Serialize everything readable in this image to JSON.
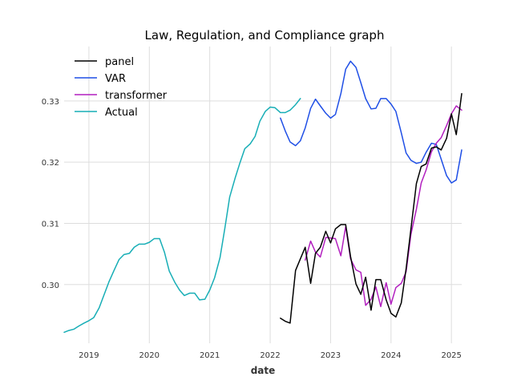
{
  "chart_data": {
    "type": "line",
    "title": "Law, Regulation, and Compliance graph",
    "xlabel": "date",
    "ylabel": "",
    "xlim": [
      2018.59,
      2025.17
    ],
    "ylim": [
      0.2904,
      0.3389
    ],
    "x_ticks": [
      2019,
      2020,
      2021,
      2022,
      2023,
      2024,
      2025
    ],
    "x_tick_labels": [
      "2019",
      "2020",
      "2021",
      "2022",
      "2023",
      "2024",
      "2025"
    ],
    "y_ticks": [
      0.3,
      0.31,
      0.32,
      0.33
    ],
    "y_tick_labels": [
      "0.30",
      "0.31",
      "0.32",
      "0.33"
    ],
    "grid": true,
    "legend_position": "top-left",
    "series": [
      {
        "name": "panel",
        "color": "#000000",
        "x": [
          2022.17,
          2022.25,
          2022.33,
          2022.42,
          2022.5,
          2022.58,
          2022.67,
          2022.75,
          2022.83,
          2022.92,
          2023.0,
          2023.08,
          2023.17,
          2023.25,
          2023.33,
          2023.42,
          2023.5,
          2023.58,
          2023.67,
          2023.75,
          2023.83,
          2023.92,
          2024.0,
          2024.08,
          2024.17,
          2024.25,
          2024.33,
          2024.42,
          2024.5,
          2024.58,
          2024.67,
          2024.75,
          2024.83,
          2024.92,
          2025.0,
          2025.08,
          2025.17
        ],
        "y": [
          0.2945,
          0.294,
          0.2937,
          0.3023,
          0.3042,
          0.3061,
          0.3002,
          0.3051,
          0.3061,
          0.3087,
          0.3068,
          0.3091,
          0.3098,
          0.3098,
          0.3046,
          0.3001,
          0.2984,
          0.3012,
          0.2958,
          0.3008,
          0.3008,
          0.2975,
          0.2953,
          0.2947,
          0.297,
          0.3026,
          0.3091,
          0.3165,
          0.3193,
          0.3197,
          0.3223,
          0.3225,
          0.322,
          0.3239,
          0.3279,
          0.3245,
          0.3312
        ]
      },
      {
        "name": "VAR",
        "color": "#1f4fe6",
        "x": [
          2022.17,
          2022.25,
          2022.33,
          2022.42,
          2022.5,
          2022.58,
          2022.67,
          2022.75,
          2022.83,
          2022.92,
          2023.0,
          2023.08,
          2023.17,
          2023.25,
          2023.33,
          2023.42,
          2023.5,
          2023.58,
          2023.67,
          2023.75,
          2023.83,
          2023.92,
          2024.0,
          2024.08,
          2024.17,
          2024.25,
          2024.33,
          2024.42,
          2024.5,
          2024.58,
          2024.67,
          2024.75,
          2024.83,
          2024.92,
          2025.0,
          2025.08,
          2025.17
        ],
        "y": [
          0.3272,
          0.3251,
          0.3233,
          0.3227,
          0.3235,
          0.3256,
          0.3288,
          0.3303,
          0.3292,
          0.328,
          0.3272,
          0.3278,
          0.3312,
          0.3352,
          0.3365,
          0.3355,
          0.333,
          0.3304,
          0.3287,
          0.3288,
          0.3304,
          0.3304,
          0.3295,
          0.3283,
          0.3248,
          0.3215,
          0.3203,
          0.3198,
          0.32,
          0.3216,
          0.3231,
          0.3229,
          0.3205,
          0.3178,
          0.3166,
          0.3171,
          0.322
        ]
      },
      {
        "name": "transformer",
        "color": "#b21fbf",
        "x": [
          2022.58,
          2022.67,
          2022.75,
          2022.83,
          2022.92,
          2023.0,
          2023.08,
          2023.17,
          2023.25,
          2023.33,
          2023.42,
          2023.5,
          2023.58,
          2023.67,
          2023.75,
          2023.83,
          2023.92,
          2024.0,
          2024.08,
          2024.17,
          2024.25,
          2024.33,
          2024.42,
          2024.5,
          2024.58,
          2024.67,
          2024.75,
          2024.83,
          2024.92,
          2025.0,
          2025.08,
          2025.17
        ],
        "y": [
          0.304,
          0.3071,
          0.3053,
          0.3045,
          0.3077,
          0.3076,
          0.3075,
          0.3047,
          0.3095,
          0.3042,
          0.3024,
          0.302,
          0.2966,
          0.2976,
          0.2996,
          0.2964,
          0.3003,
          0.2968,
          0.2995,
          0.3002,
          0.3021,
          0.3082,
          0.3123,
          0.3166,
          0.3187,
          0.3217,
          0.3231,
          0.324,
          0.326,
          0.3279,
          0.3292,
          0.3285
        ]
      },
      {
        "name": "Actual",
        "color": "#17aeb6",
        "x": [
          2018.59,
          2018.67,
          2018.75,
          2018.83,
          2018.92,
          2019.0,
          2019.08,
          2019.17,
          2019.25,
          2019.33,
          2019.42,
          2019.5,
          2019.58,
          2019.67,
          2019.75,
          2019.83,
          2019.92,
          2020.0,
          2020.08,
          2020.17,
          2020.25,
          2020.33,
          2020.42,
          2020.5,
          2020.58,
          2020.67,
          2020.75,
          2020.83,
          2020.92,
          2021.0,
          2021.08,
          2021.17,
          2021.25,
          2021.33,
          2021.42,
          2021.5,
          2021.58,
          2021.67,
          2021.75,
          2021.83,
          2021.92,
          2022.0,
          2022.08,
          2022.17,
          2022.25,
          2022.33,
          2022.42,
          2022.5
        ],
        "y": [
          0.2922,
          0.2925,
          0.2927,
          0.2932,
          0.2937,
          0.2941,
          0.2946,
          0.2962,
          0.2983,
          0.3004,
          0.3024,
          0.3041,
          0.3049,
          0.3051,
          0.3061,
          0.3066,
          0.3066,
          0.3069,
          0.3075,
          0.3075,
          0.3053,
          0.3022,
          0.3004,
          0.2991,
          0.2982,
          0.2986,
          0.2986,
          0.2975,
          0.2976,
          0.2991,
          0.3011,
          0.3044,
          0.3092,
          0.3143,
          0.3174,
          0.3199,
          0.3222,
          0.323,
          0.3242,
          0.3267,
          0.3283,
          0.329,
          0.3289,
          0.3281,
          0.3281,
          0.3285,
          0.3294,
          0.3304
        ]
      }
    ]
  }
}
